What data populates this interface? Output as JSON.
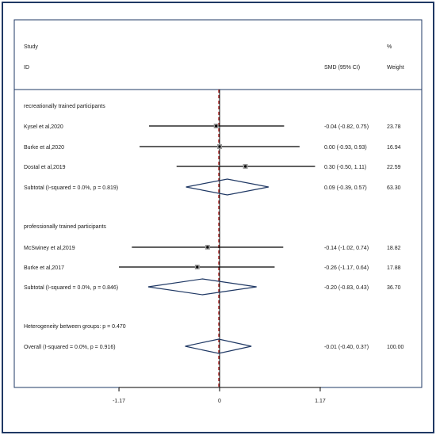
{
  "chart_data": {
    "type": "forest",
    "header": {
      "study_line1": "Study",
      "study_line2": "ID",
      "effect": "SMD (95% CI)",
      "weight_line1": "%",
      "weight_line2": "Weight"
    },
    "xaxis": {
      "range": [
        -1.17,
        1.17
      ],
      "ticks": [
        "-1.17",
        "0",
        "1.17"
      ],
      "tick_values": [
        -1.17,
        0,
        1.17
      ]
    },
    "reference_line": 0,
    "overall_line": -0.01,
    "subgroups": [
      {
        "label": "recreationally trained participants",
        "studies": [
          {
            "name": "Kysel et al,2020",
            "smd": -0.04,
            "lo": -0.82,
            "hi": 0.75,
            "ci_text": "-0.04 (-0.82, 0.75)",
            "weight": "23.78"
          },
          {
            "name": "Burke et al,2020",
            "smd": 0.0,
            "lo": -0.93,
            "hi": 0.93,
            "ci_text": "0.00 (-0.93, 0.93)",
            "weight": "16.94"
          },
          {
            "name": "Dostal et al,2019",
            "smd": 0.3,
            "lo": -0.5,
            "hi": 1.11,
            "ci_text": "0.30 (-0.50, 1.11)",
            "weight": "22.59"
          }
        ],
        "subtotal": {
          "label": "Subtotal  (I-squared = 0.0%, p = 0.819)",
          "smd": 0.09,
          "lo": -0.39,
          "hi": 0.57,
          "ci_text": "0.09 (-0.39, 0.57)",
          "weight": "63.30"
        }
      },
      {
        "label": "professionally trained participants",
        "studies": [
          {
            "name": "McSwiney et al,2019",
            "smd": -0.14,
            "lo": -1.02,
            "hi": 0.74,
            "ci_text": "-0.14 (-1.02, 0.74)",
            "weight": "18.82"
          },
          {
            "name": "Burke et al,2017",
            "smd": -0.26,
            "lo": -1.17,
            "hi": 0.64,
            "ci_text": "-0.26 (-1.17, 0.64)",
            "weight": "17.88"
          }
        ],
        "subtotal": {
          "label": "Subtotal  (I-squared = 0.0%, p = 0.846)",
          "smd": -0.2,
          "lo": -0.83,
          "hi": 0.43,
          "ci_text": "-0.20 (-0.83, 0.43)",
          "weight": "36.70"
        }
      }
    ],
    "heterogeneity": "Heterogeneity between groups: p = 0.470",
    "overall": {
      "label": "Overall  (I-squared = 0.0%, p = 0.916)",
      "smd": -0.01,
      "lo": -0.4,
      "hi": 0.37,
      "ci_text": "-0.01 (-0.40, 0.37)",
      "weight": "100.00"
    },
    "colors": {
      "frame": "#1f3864",
      "diamond": "#1f3864",
      "overall_line": "#b22222",
      "ci_line": "#000000",
      "text": "#1a1a1a"
    }
  }
}
